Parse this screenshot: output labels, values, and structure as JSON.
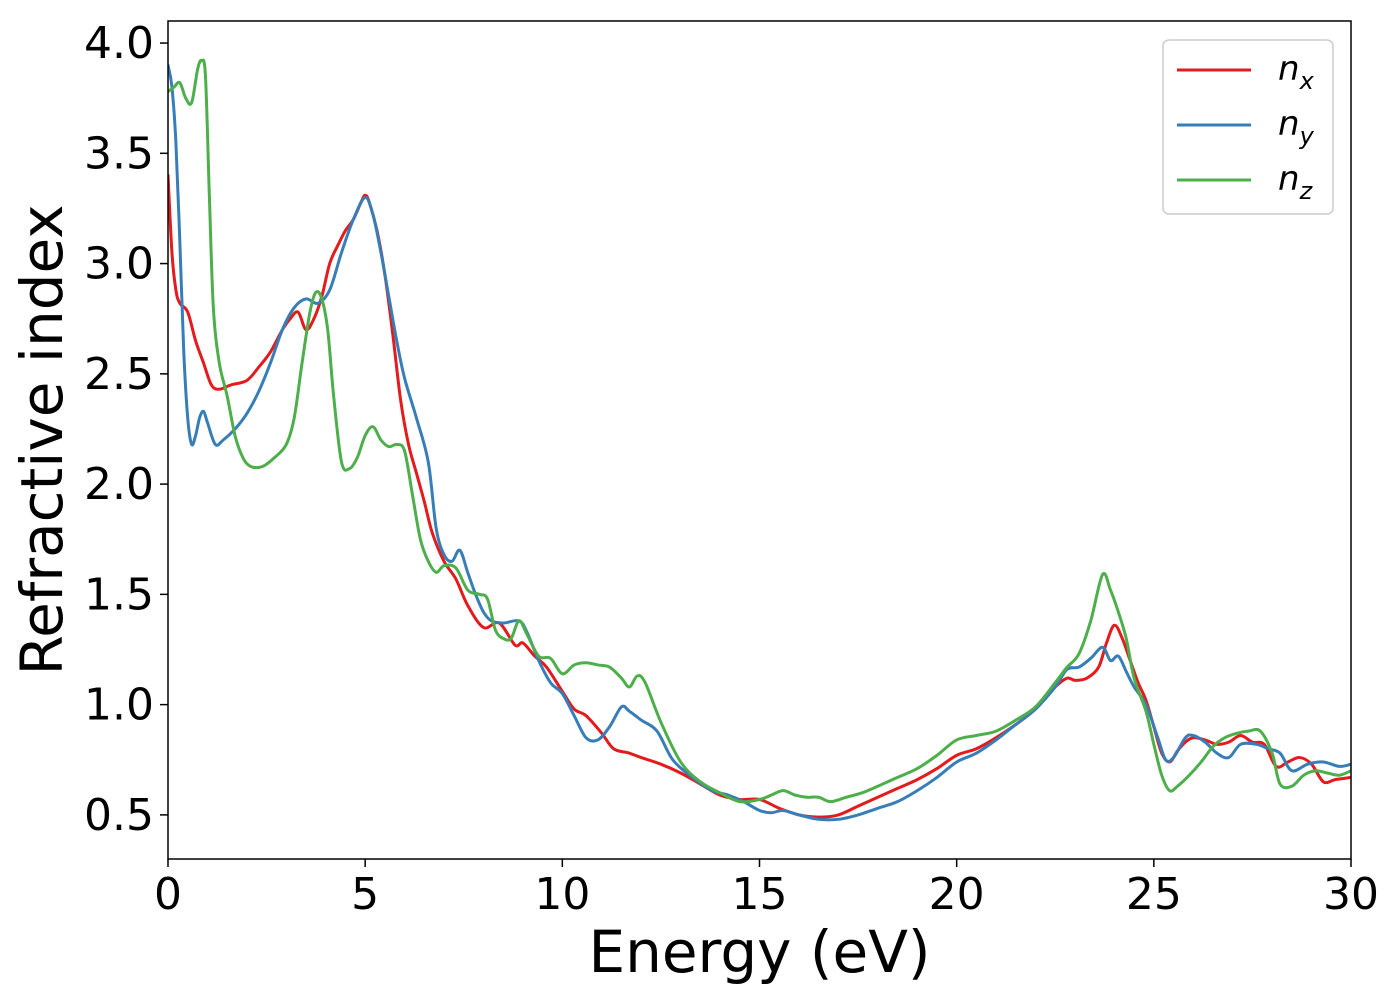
{
  "chart_data": {
    "type": "line",
    "xlabel": "Energy (eV)",
    "ylabel": "Refractive index",
    "xlim": [
      0,
      30
    ],
    "ylim": [
      0.3,
      4.1
    ],
    "xticks": [
      0,
      5,
      10,
      15,
      20,
      25,
      30
    ],
    "xtick_labels": [
      "0",
      "5",
      "10",
      "15",
      "20",
      "25",
      "30"
    ],
    "yticks": [
      0.5,
      1.0,
      1.5,
      2.0,
      2.5,
      3.0,
      3.5,
      4.0
    ],
    "ytick_labels": [
      "0.5",
      "1.0",
      "1.5",
      "2.0",
      "2.5",
      "3.0",
      "3.5",
      "4.0"
    ],
    "grid": false,
    "legend_position": "top-right",
    "series": [
      {
        "name": "n",
        "subscript": "x",
        "color": "#e41a1c",
        "x": [
          0,
          0.1,
          0.2,
          0.3,
          0.5,
          0.7,
          0.9,
          1.1,
          1.3,
          1.6,
          2.0,
          2.3,
          2.6,
          2.9,
          3.1,
          3.3,
          3.5,
          3.7,
          3.9,
          4.1,
          4.3,
          4.5,
          4.7,
          4.9,
          5.0,
          5.1,
          5.3,
          5.5,
          5.7,
          5.9,
          6.1,
          6.3,
          6.5,
          6.7,
          7.0,
          7.3,
          7.6,
          8.0,
          8.4,
          8.8,
          9.0,
          9.3,
          9.6,
          10.0,
          10.3,
          10.6,
          11.0,
          11.3,
          11.7,
          12.0,
          12.5,
          13.0,
          13.5,
          14.0,
          14.5,
          15.0,
          15.5,
          16.0,
          16.5,
          17.0,
          17.5,
          18.0,
          18.5,
          19.0,
          19.5,
          20.0,
          20.5,
          21.0,
          21.5,
          22.0,
          22.5,
          22.8,
          23.0,
          23.3,
          23.6,
          23.8,
          24.0,
          24.2,
          24.4,
          24.6,
          24.8,
          25.0,
          25.2,
          25.4,
          25.6,
          25.8,
          26.0,
          26.3,
          26.6,
          26.9,
          27.2,
          27.5,
          27.8,
          28.1,
          28.4,
          28.7,
          29.0,
          29.3,
          29.6,
          30.0
        ],
        "y": [
          3.4,
          3.05,
          2.88,
          2.82,
          2.78,
          2.65,
          2.55,
          2.45,
          2.43,
          2.45,
          2.47,
          2.53,
          2.6,
          2.7,
          2.75,
          2.78,
          2.7,
          2.75,
          2.85,
          3.0,
          3.08,
          3.15,
          3.2,
          3.28,
          3.31,
          3.28,
          3.15,
          2.95,
          2.68,
          2.38,
          2.18,
          2.05,
          1.92,
          1.78,
          1.65,
          1.57,
          1.45,
          1.35,
          1.37,
          1.27,
          1.28,
          1.22,
          1.17,
          1.06,
          0.98,
          0.95,
          0.87,
          0.8,
          0.78,
          0.76,
          0.73,
          0.69,
          0.64,
          0.59,
          0.57,
          0.57,
          0.53,
          0.5,
          0.49,
          0.5,
          0.54,
          0.58,
          0.62,
          0.66,
          0.71,
          0.77,
          0.8,
          0.85,
          0.91,
          0.98,
          1.08,
          1.12,
          1.11,
          1.12,
          1.17,
          1.28,
          1.36,
          1.3,
          1.2,
          1.1,
          1.02,
          0.9,
          0.78,
          0.74,
          0.79,
          0.83,
          0.85,
          0.84,
          0.82,
          0.83,
          0.86,
          0.83,
          0.82,
          0.72,
          0.74,
          0.76,
          0.73,
          0.65,
          0.66,
          0.67
        ]
      },
      {
        "name": "n",
        "subscript": "y",
        "color": "#377eb8",
        "x": [
          0,
          0.1,
          0.2,
          0.3,
          0.4,
          0.5,
          0.6,
          0.7,
          0.8,
          0.9,
          1.0,
          1.2,
          1.4,
          1.7,
          2.0,
          2.3,
          2.6,
          2.9,
          3.2,
          3.5,
          3.8,
          4.1,
          4.4,
          4.7,
          5.0,
          5.2,
          5.4,
          5.6,
          5.8,
          6.0,
          6.3,
          6.6,
          6.8,
          7.0,
          7.2,
          7.4,
          7.6,
          7.8,
          8.0,
          8.2,
          8.5,
          8.9,
          9.1,
          9.4,
          9.7,
          10.0,
          10.3,
          10.6,
          10.9,
          11.2,
          11.5,
          11.7,
          12.0,
          12.4,
          12.8,
          13.3,
          13.8,
          14.2,
          14.6,
          15.0,
          15.3,
          15.6,
          16.0,
          16.5,
          17.0,
          17.5,
          18.0,
          18.5,
          19.0,
          19.5,
          20.0,
          20.5,
          21.0,
          21.5,
          22.0,
          22.5,
          22.8,
          23.1,
          23.4,
          23.7,
          23.9,
          24.1,
          24.3,
          24.5,
          24.8,
          25.1,
          25.3,
          25.5,
          25.8,
          26.0,
          26.3,
          26.6,
          26.9,
          27.2,
          27.6,
          27.9,
          28.2,
          28.5,
          28.9,
          29.3,
          29.7,
          30.0
        ],
        "y": [
          3.9,
          3.8,
          3.55,
          3.1,
          2.6,
          2.3,
          2.18,
          2.22,
          2.3,
          2.33,
          2.28,
          2.18,
          2.2,
          2.25,
          2.32,
          2.42,
          2.55,
          2.7,
          2.8,
          2.84,
          2.82,
          2.88,
          3.05,
          3.2,
          3.3,
          3.22,
          3.05,
          2.85,
          2.65,
          2.48,
          2.3,
          2.1,
          1.8,
          1.68,
          1.65,
          1.7,
          1.6,
          1.5,
          1.42,
          1.38,
          1.37,
          1.38,
          1.33,
          1.2,
          1.1,
          1.05,
          0.95,
          0.85,
          0.84,
          0.9,
          0.99,
          0.97,
          0.93,
          0.88,
          0.75,
          0.67,
          0.61,
          0.59,
          0.56,
          0.52,
          0.51,
          0.52,
          0.5,
          0.48,
          0.48,
          0.5,
          0.53,
          0.56,
          0.61,
          0.67,
          0.74,
          0.78,
          0.84,
          0.91,
          0.98,
          1.08,
          1.16,
          1.17,
          1.21,
          1.26,
          1.2,
          1.22,
          1.15,
          1.08,
          1.0,
          0.85,
          0.75,
          0.76,
          0.85,
          0.86,
          0.83,
          0.78,
          0.76,
          0.82,
          0.82,
          0.8,
          0.78,
          0.7,
          0.73,
          0.74,
          0.72,
          0.73
        ]
      },
      {
        "name": "n",
        "subscript": "z",
        "color": "#4daf4a",
        "x": [
          0,
          0.15,
          0.3,
          0.45,
          0.6,
          0.75,
          0.85,
          0.95,
          1.05,
          1.15,
          1.3,
          1.5,
          1.7,
          1.9,
          2.1,
          2.4,
          2.7,
          3.0,
          3.2,
          3.4,
          3.6,
          3.75,
          3.9,
          4.05,
          4.2,
          4.4,
          4.6,
          4.8,
          5.0,
          5.2,
          5.4,
          5.6,
          5.8,
          6.0,
          6.2,
          6.4,
          6.6,
          6.8,
          7.0,
          7.3,
          7.6,
          7.9,
          8.1,
          8.3,
          8.5,
          8.7,
          8.9,
          9.1,
          9.4,
          9.7,
          10.0,
          10.3,
          10.6,
          10.9,
          11.2,
          11.5,
          11.7,
          11.9,
          12.1,
          12.5,
          13.0,
          13.5,
          14.0,
          14.5,
          15.0,
          15.3,
          15.6,
          15.9,
          16.2,
          16.5,
          16.8,
          17.2,
          17.6,
          18.0,
          18.5,
          19.0,
          19.5,
          20.0,
          20.5,
          21.0,
          21.5,
          22.0,
          22.5,
          22.8,
          23.1,
          23.4,
          23.7,
          23.9,
          24.1,
          24.3,
          24.5,
          24.8,
          25.0,
          25.2,
          25.4,
          25.6,
          25.9,
          26.2,
          26.5,
          26.8,
          27.1,
          27.4,
          27.7,
          28.0,
          28.2,
          28.5,
          28.8,
          29.1,
          29.4,
          29.7,
          30.0
        ],
        "y": [
          3.78,
          3.8,
          3.82,
          3.75,
          3.73,
          3.88,
          3.92,
          3.85,
          3.3,
          2.8,
          2.55,
          2.4,
          2.22,
          2.12,
          2.08,
          2.08,
          2.12,
          2.18,
          2.3,
          2.55,
          2.78,
          2.87,
          2.84,
          2.7,
          2.4,
          2.1,
          2.07,
          2.12,
          2.22,
          2.26,
          2.2,
          2.17,
          2.18,
          2.15,
          1.95,
          1.75,
          1.65,
          1.6,
          1.63,
          1.62,
          1.52,
          1.5,
          1.48,
          1.34,
          1.3,
          1.3,
          1.38,
          1.32,
          1.22,
          1.21,
          1.14,
          1.18,
          1.19,
          1.18,
          1.17,
          1.12,
          1.08,
          1.13,
          1.1,
          0.92,
          0.74,
          0.65,
          0.6,
          0.56,
          0.57,
          0.59,
          0.61,
          0.59,
          0.58,
          0.58,
          0.56,
          0.58,
          0.6,
          0.63,
          0.67,
          0.71,
          0.77,
          0.84,
          0.86,
          0.88,
          0.93,
          0.99,
          1.1,
          1.17,
          1.23,
          1.38,
          1.59,
          1.52,
          1.42,
          1.3,
          1.12,
          0.97,
          0.82,
          0.68,
          0.61,
          0.63,
          0.68,
          0.74,
          0.81,
          0.85,
          0.87,
          0.88,
          0.88,
          0.78,
          0.64,
          0.63,
          0.68,
          0.7,
          0.69,
          0.68,
          0.7
        ]
      }
    ]
  }
}
